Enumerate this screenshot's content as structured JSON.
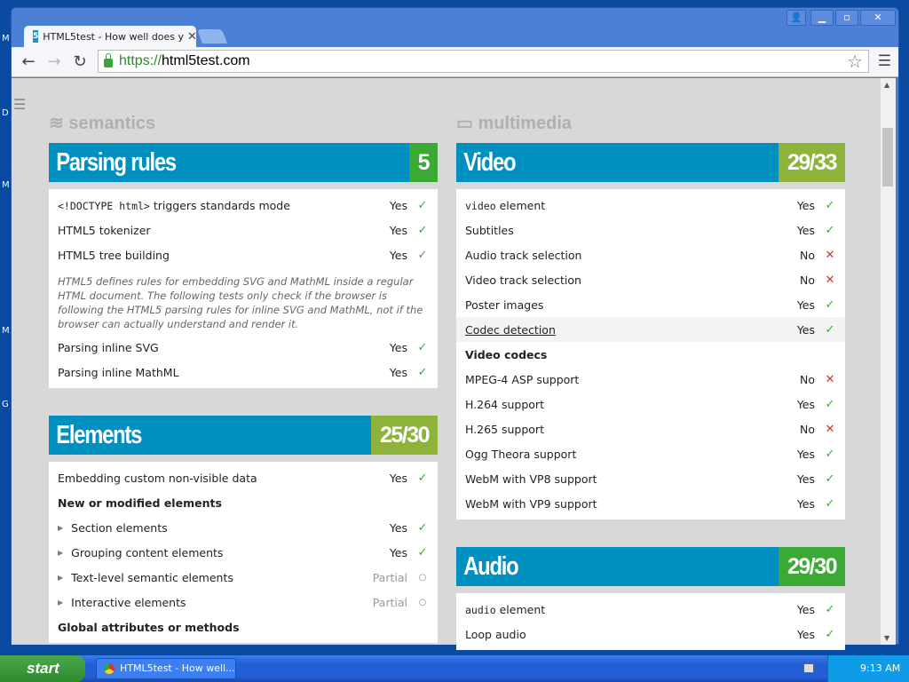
{
  "desktop": {
    "letters": [
      "M",
      "D",
      "M",
      "M",
      "G"
    ]
  },
  "window": {
    "tab_title": "HTML5test - How well does y",
    "tab_favicon": "5",
    "controls": [
      "user-icon",
      "minimize-icon",
      "maximize-icon",
      "close-icon"
    ]
  },
  "toolbar": {
    "url_scheme": "https://",
    "url_host": "html5test.com"
  },
  "page": {
    "left_category": "semantics",
    "right_category": "multimedia",
    "colors": {
      "header": "#0090c0",
      "score_full": "#3aaa35",
      "score_partial": "#8db33a",
      "yes": "#3aa53a",
      "no": "#cc3333"
    },
    "sections": [
      {
        "col": "left",
        "title": "Parsing rules",
        "score": "5",
        "score_color": "#3aaa35",
        "items": [
          {
            "code": "<!DOCTYPE html>",
            "label": " triggers standards mode",
            "result": "Yes",
            "status": "yes"
          },
          {
            "label": "HTML5 tokenizer",
            "result": "Yes",
            "status": "yes"
          },
          {
            "label": "HTML5 tree building",
            "result": "Yes",
            "status": "yes"
          },
          {
            "note": "HTML5 defines rules for embedding SVG and MathML inside a regular HTML document. The following tests only check if the browser is following the HTML5 parsing rules for inline SVG and MathML, not if the browser can actually understand and render it."
          },
          {
            "label": "Parsing inline SVG",
            "result": "Yes",
            "status": "yes"
          },
          {
            "label": "Parsing inline MathML",
            "result": "Yes",
            "status": "yes"
          }
        ]
      },
      {
        "col": "left",
        "title": "Elements",
        "score": "25/30",
        "score_color": "#8db33a",
        "items": [
          {
            "label": "Embedding custom non-visible data",
            "result": "Yes",
            "status": "yes"
          },
          {
            "heading": "New or modified elements"
          },
          {
            "arrow": true,
            "label": "Section elements",
            "result": "Yes",
            "status": "yes"
          },
          {
            "arrow": true,
            "label": "Grouping content elements",
            "result": "Yes",
            "status": "yes"
          },
          {
            "arrow": true,
            "label": "Text-level semantic elements",
            "result": "Partial",
            "status": "partial"
          },
          {
            "arrow": true,
            "label": "Interactive elements",
            "result": "Partial",
            "status": "partial"
          },
          {
            "heading": "Global attributes or methods"
          }
        ]
      },
      {
        "col": "right",
        "title": "Video",
        "score": "29/33",
        "score_color": "#8db33a",
        "items": [
          {
            "code": "video",
            "label": " element",
            "result": "Yes",
            "status": "yes"
          },
          {
            "label": "Subtitles",
            "result": "Yes",
            "status": "yes"
          },
          {
            "label": "Audio track selection",
            "result": "No",
            "status": "no"
          },
          {
            "label": "Video track selection",
            "result": "No",
            "status": "no"
          },
          {
            "label": "Poster images",
            "result": "Yes",
            "status": "yes"
          },
          {
            "label": "Codec detection",
            "result": "Yes",
            "status": "yes",
            "link": true,
            "highlight": true
          },
          {
            "heading": "Video codecs"
          },
          {
            "label": "MPEG-4 ASP support",
            "result": "No",
            "status": "no"
          },
          {
            "label": "H.264 support",
            "result": "Yes",
            "status": "yes"
          },
          {
            "label": "H.265 support",
            "result": "No",
            "status": "no"
          },
          {
            "label": "Ogg Theora support",
            "result": "Yes",
            "status": "yes"
          },
          {
            "label": "WebM with VP8 support",
            "result": "Yes",
            "status": "yes"
          },
          {
            "label": "WebM with VP9 support",
            "result": "Yes",
            "status": "yes"
          }
        ]
      },
      {
        "col": "right",
        "title": "Audio",
        "score": "29/30",
        "score_color": "#3aaa35",
        "items": [
          {
            "code": "audio",
            "label": " element",
            "result": "Yes",
            "status": "yes"
          },
          {
            "label": "Loop audio",
            "result": "Yes",
            "status": "yes"
          }
        ]
      }
    ]
  },
  "taskbar": {
    "start": "start",
    "task": "HTML5test - How well...",
    "clock": "9:13 AM"
  }
}
